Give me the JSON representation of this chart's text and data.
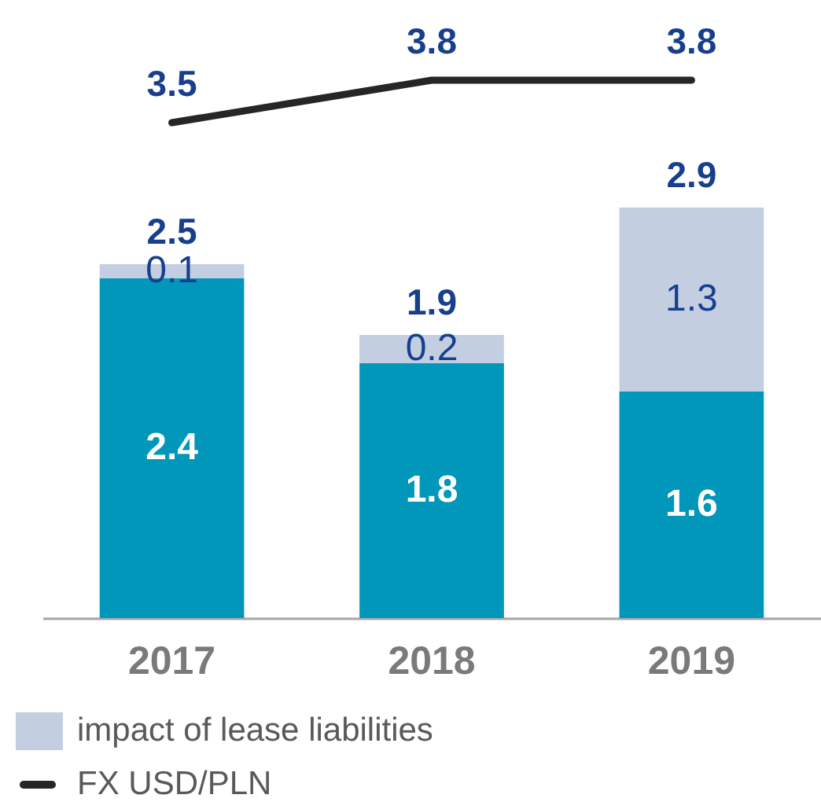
{
  "chart_data": {
    "type": "bar",
    "categories": [
      "2017",
      "2018",
      "2019"
    ],
    "stacked": true,
    "series": [
      {
        "color": "#0097bb",
        "values": [
          2.4,
          1.8,
          1.6
        ]
      },
      {
        "name": "impact of lease liabilities",
        "color": "#c3cee1",
        "values": [
          0.1,
          0.2,
          1.3
        ]
      },
      {
        "type": "line",
        "name": "FX USD/PLN",
        "color": "#262626",
        "values": [
          3.5,
          3.8,
          3.8
        ]
      }
    ],
    "totals": [
      "2.5",
      "1.9",
      "2.9"
    ],
    "data_labels": true,
    "marker": "none",
    "line_style": "solid",
    "grid": false,
    "legend": "bottom left"
  }
}
